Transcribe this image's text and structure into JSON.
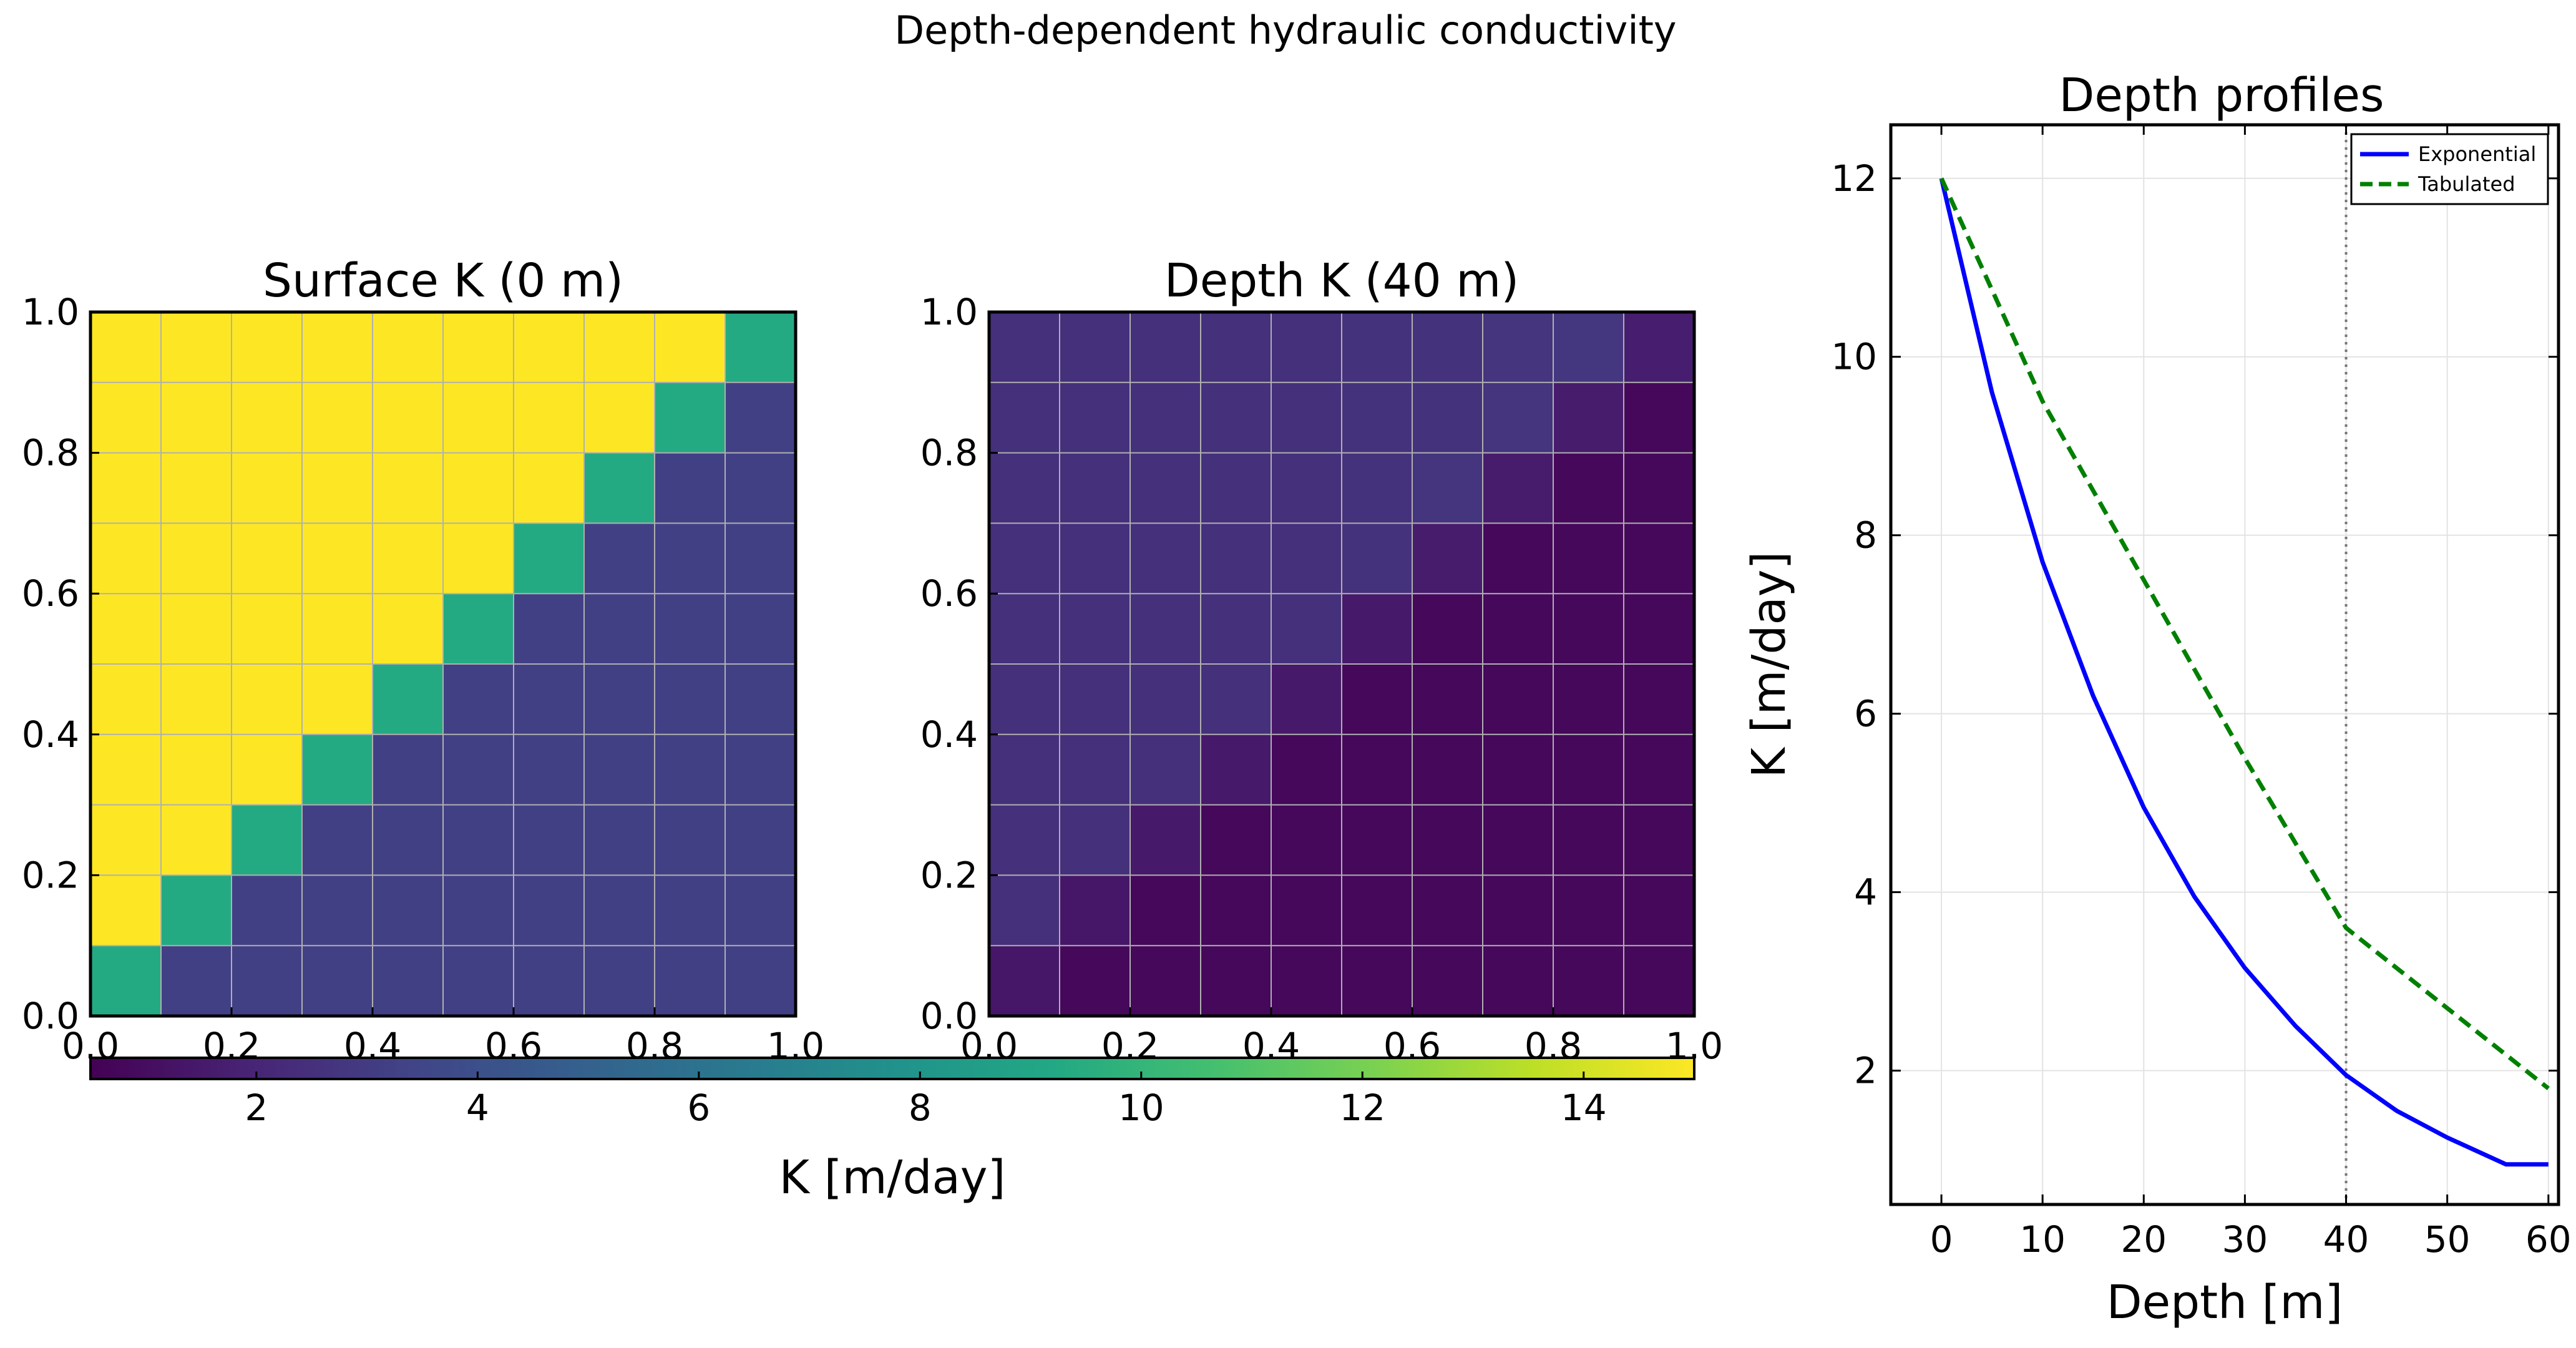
{
  "figure": {
    "title": "Depth-dependent hydraulic conductivity"
  },
  "colorbar": {
    "label": "K [m/day]",
    "min": 0.5,
    "max": 15,
    "ticks": [
      2,
      4,
      6,
      8,
      10,
      12,
      14
    ]
  },
  "chart_data": [
    {
      "type": "heatmap",
      "title": "Surface K (0 m)",
      "xlim": [
        0,
        1
      ],
      "ylim": [
        0,
        1
      ],
      "xticks": [
        "0.0",
        "0.2",
        "0.4",
        "0.6",
        "0.8",
        "1.0"
      ],
      "yticks": [
        "0.0",
        "0.2",
        "0.4",
        "0.6",
        "0.8",
        "1.0"
      ],
      "colorscale": "viridis",
      "zmin": 0.5,
      "zmax": 15,
      "rows_top_to_bottom": [
        [
          15,
          15,
          15,
          15,
          15,
          15,
          15,
          15,
          15,
          9.3
        ],
        [
          15,
          15,
          15,
          15,
          15,
          15,
          15,
          15,
          9.3,
          3.2
        ],
        [
          15,
          15,
          15,
          15,
          15,
          15,
          15,
          9.3,
          3.2,
          3.2
        ],
        [
          15,
          15,
          15,
          15,
          15,
          15,
          9.3,
          3.2,
          3.2,
          3.2
        ],
        [
          15,
          15,
          15,
          15,
          15,
          9.3,
          3.2,
          3.2,
          3.2,
          3.2
        ],
        [
          15,
          15,
          15,
          15,
          9.3,
          3.2,
          3.2,
          3.2,
          3.2,
          3.2
        ],
        [
          15,
          15,
          15,
          9.3,
          3.2,
          3.2,
          3.2,
          3.2,
          3.2,
          3.2
        ],
        [
          15,
          15,
          9.3,
          3.2,
          3.2,
          3.2,
          3.2,
          3.2,
          3.2,
          3.2
        ],
        [
          15,
          9.3,
          3.2,
          3.2,
          3.2,
          3.2,
          3.2,
          3.2,
          3.2,
          3.2
        ],
        [
          9.3,
          3.2,
          3.2,
          3.2,
          3.2,
          3.2,
          3.2,
          3.2,
          3.2,
          3.2
        ]
      ]
    },
    {
      "type": "heatmap",
      "title": "Depth K (40 m)",
      "xlim": [
        0,
        1
      ],
      "ylim": [
        0,
        1
      ],
      "xticks": [
        "0.0",
        "0.2",
        "0.4",
        "0.6",
        "0.8",
        "1.0"
      ],
      "yticks": [
        "0.0",
        "0.2",
        "0.4",
        "0.6",
        "0.8",
        "1.0"
      ],
      "colorscale": "viridis",
      "zmin": 0.5,
      "zmax": 15,
      "rows_top_to_bottom": [
        [
          2.5,
          2.5,
          2.5,
          2.5,
          2.5,
          2.6,
          2.6,
          2.7,
          2.8,
          1.7
        ],
        [
          2.5,
          2.5,
          2.5,
          2.5,
          2.5,
          2.6,
          2.6,
          2.7,
          1.6,
          0.8
        ],
        [
          2.5,
          2.5,
          2.5,
          2.5,
          2.5,
          2.6,
          2.7,
          1.6,
          0.8,
          0.8
        ],
        [
          2.5,
          2.5,
          2.5,
          2.5,
          2.5,
          2.6,
          1.6,
          0.8,
          0.8,
          0.8
        ],
        [
          2.5,
          2.5,
          2.5,
          2.5,
          2.5,
          1.5,
          0.8,
          0.8,
          0.8,
          0.8
        ],
        [
          2.5,
          2.5,
          2.5,
          2.5,
          1.5,
          0.8,
          0.8,
          0.8,
          0.8,
          0.8
        ],
        [
          2.5,
          2.5,
          2.5,
          1.5,
          0.8,
          0.8,
          0.8,
          0.8,
          0.8,
          0.8
        ],
        [
          2.5,
          2.5,
          1.5,
          0.8,
          0.8,
          0.8,
          0.8,
          0.8,
          0.8,
          0.8
        ],
        [
          2.5,
          1.4,
          0.8,
          0.8,
          0.8,
          0.8,
          0.8,
          0.8,
          0.8,
          0.8
        ],
        [
          1.4,
          0.8,
          0.8,
          0.8,
          0.8,
          0.8,
          0.8,
          0.8,
          0.8,
          0.8
        ]
      ]
    },
    {
      "type": "line",
      "title": "Depth profiles",
      "xlabel": "Depth [m]",
      "ylabel": "K [m/day]",
      "xlim": [
        -5,
        61
      ],
      "ylim": [
        0.5,
        12.6
      ],
      "xticks": [
        0,
        10,
        20,
        30,
        40,
        50,
        60
      ],
      "yticks": [
        2,
        4,
        6,
        8,
        10,
        12
      ],
      "grid": true,
      "legend": "top-right",
      "vline": 40,
      "series": [
        {
          "name": "Exponential",
          "color": "#0000ff",
          "dash": "solid",
          "x": [
            0,
            5,
            10,
            15,
            20,
            25,
            30,
            35,
            40,
            45,
            50,
            55.8,
            60
          ],
          "y": [
            12.0,
            9.6,
            7.7,
            6.2,
            4.95,
            3.95,
            3.15,
            2.5,
            1.95,
            1.55,
            1.25,
            0.95,
            0.95
          ]
        },
        {
          "name": "Tabulated",
          "color": "#008000",
          "dash": "dashed",
          "x": [
            0,
            10,
            20,
            30,
            40,
            50,
            60
          ],
          "y": [
            12.0,
            9.5,
            7.5,
            5.5,
            3.6,
            2.7,
            1.8
          ]
        }
      ]
    }
  ]
}
